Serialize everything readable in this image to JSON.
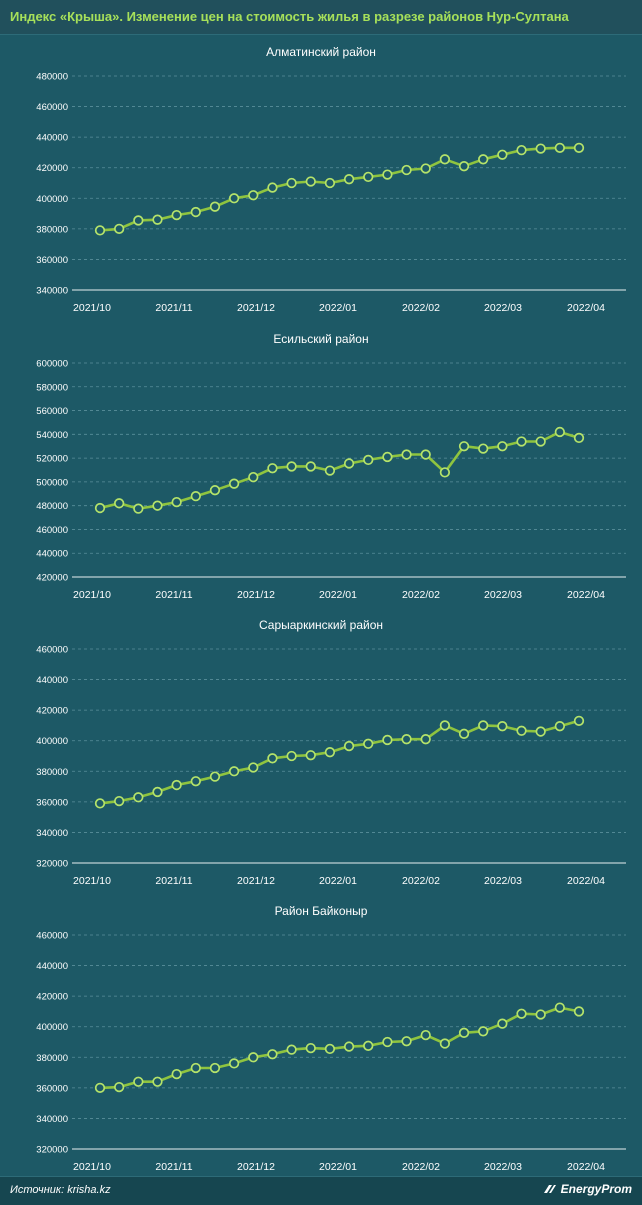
{
  "header": {
    "title": "Индекс «Крыша». Изменение цен на стоимость жилья в разрезе районов Нур-Султана"
  },
  "footer": {
    "source": "Источник: krisha.kz",
    "logo": "EnergyProm"
  },
  "colors": {
    "background": "#1d5966",
    "line": "#8fc43f",
    "marker_fill": "#1d5966",
    "marker_stroke": "#b5e36a",
    "grid": "#5a8f9b",
    "title_accent": "#a6e05a"
  },
  "chart_data": [
    {
      "type": "line",
      "title": "Алматинский район",
      "x_ticks": [
        "2021/10",
        "2021/11",
        "2021/12",
        "2022/01",
        "2022/02",
        "2022/03",
        "2022/04"
      ],
      "ylim": [
        340000,
        480000
      ],
      "yticks": [
        340000,
        360000,
        380000,
        400000,
        420000,
        440000,
        460000,
        480000
      ],
      "ytick_labels": [
        "340000",
        "360000",
        "380000",
        "400000",
        "420000",
        "440000",
        "460000",
        "480000"
      ],
      "grid": true,
      "values": [
        379000,
        380000,
        385500,
        386000,
        389000,
        391000,
        394500,
        400000,
        402000,
        407000,
        410000,
        411000,
        410000,
        412500,
        414000,
        415500,
        418500,
        419500,
        425500,
        421000,
        425500,
        428500,
        431500,
        432500,
        433000,
        433000
      ]
    },
    {
      "type": "line",
      "title": "Есильский район",
      "x_ticks": [
        "2021/10",
        "2021/11",
        "2021/12",
        "2022/01",
        "2022/02",
        "2022/03",
        "2022/04"
      ],
      "ylim": [
        420000,
        600000
      ],
      "yticks": [
        420000,
        440000,
        460000,
        480000,
        500000,
        520000,
        540000,
        560000,
        580000,
        600000
      ],
      "ytick_labels": [
        "420000",
        "440000",
        "460000",
        "480000",
        "500000",
        "520000",
        "540000",
        "560000",
        "580000",
        "600000"
      ],
      "grid": true,
      "values": [
        478000,
        482000,
        477500,
        480000,
        483000,
        488000,
        493000,
        498500,
        504000,
        511500,
        513000,
        513000,
        509500,
        515500,
        518500,
        521000,
        523000,
        523000,
        508000,
        530000,
        528000,
        530000,
        534000,
        534000,
        542000,
        537000
      ]
    },
    {
      "type": "line",
      "title": "Сарыаркинский район",
      "x_ticks": [
        "2021/10",
        "2021/11",
        "2021/12",
        "2022/01",
        "2022/02",
        "2022/03",
        "2022/04"
      ],
      "ylim": [
        320000,
        460000
      ],
      "yticks": [
        320000,
        340000,
        360000,
        380000,
        400000,
        420000,
        440000,
        460000
      ],
      "ytick_labels": [
        "320000",
        "340000",
        "360000",
        "380000",
        "400000",
        "420000",
        "440000",
        "460000"
      ],
      "grid": true,
      "values": [
        359000,
        360500,
        363000,
        366500,
        371000,
        373500,
        376500,
        380000,
        382500,
        388500,
        390000,
        390500,
        392500,
        396500,
        398000,
        400500,
        401000,
        401000,
        410000,
        404500,
        410000,
        409500,
        406500,
        406000,
        409500,
        413000
      ]
    },
    {
      "type": "line",
      "title": "Район Байконыр",
      "x_ticks": [
        "2021/10",
        "2021/11",
        "2021/12",
        "2022/01",
        "2022/02",
        "2022/03",
        "2022/04"
      ],
      "ylim": [
        320000,
        460000
      ],
      "yticks": [
        320000,
        340000,
        360000,
        380000,
        400000,
        420000,
        440000,
        460000
      ],
      "ytick_labels": [
        "320000",
        "340000",
        "360000",
        "380000",
        "400000",
        "420000",
        "440000",
        "460000"
      ],
      "grid": true,
      "values": [
        360000,
        360500,
        364000,
        364000,
        369000,
        373000,
        373000,
        376000,
        380000,
        382000,
        385000,
        386000,
        385500,
        387000,
        387500,
        390000,
        390500,
        394500,
        389000,
        396000,
        397000,
        402000,
        408500,
        408000,
        412500,
        410000
      ]
    }
  ]
}
